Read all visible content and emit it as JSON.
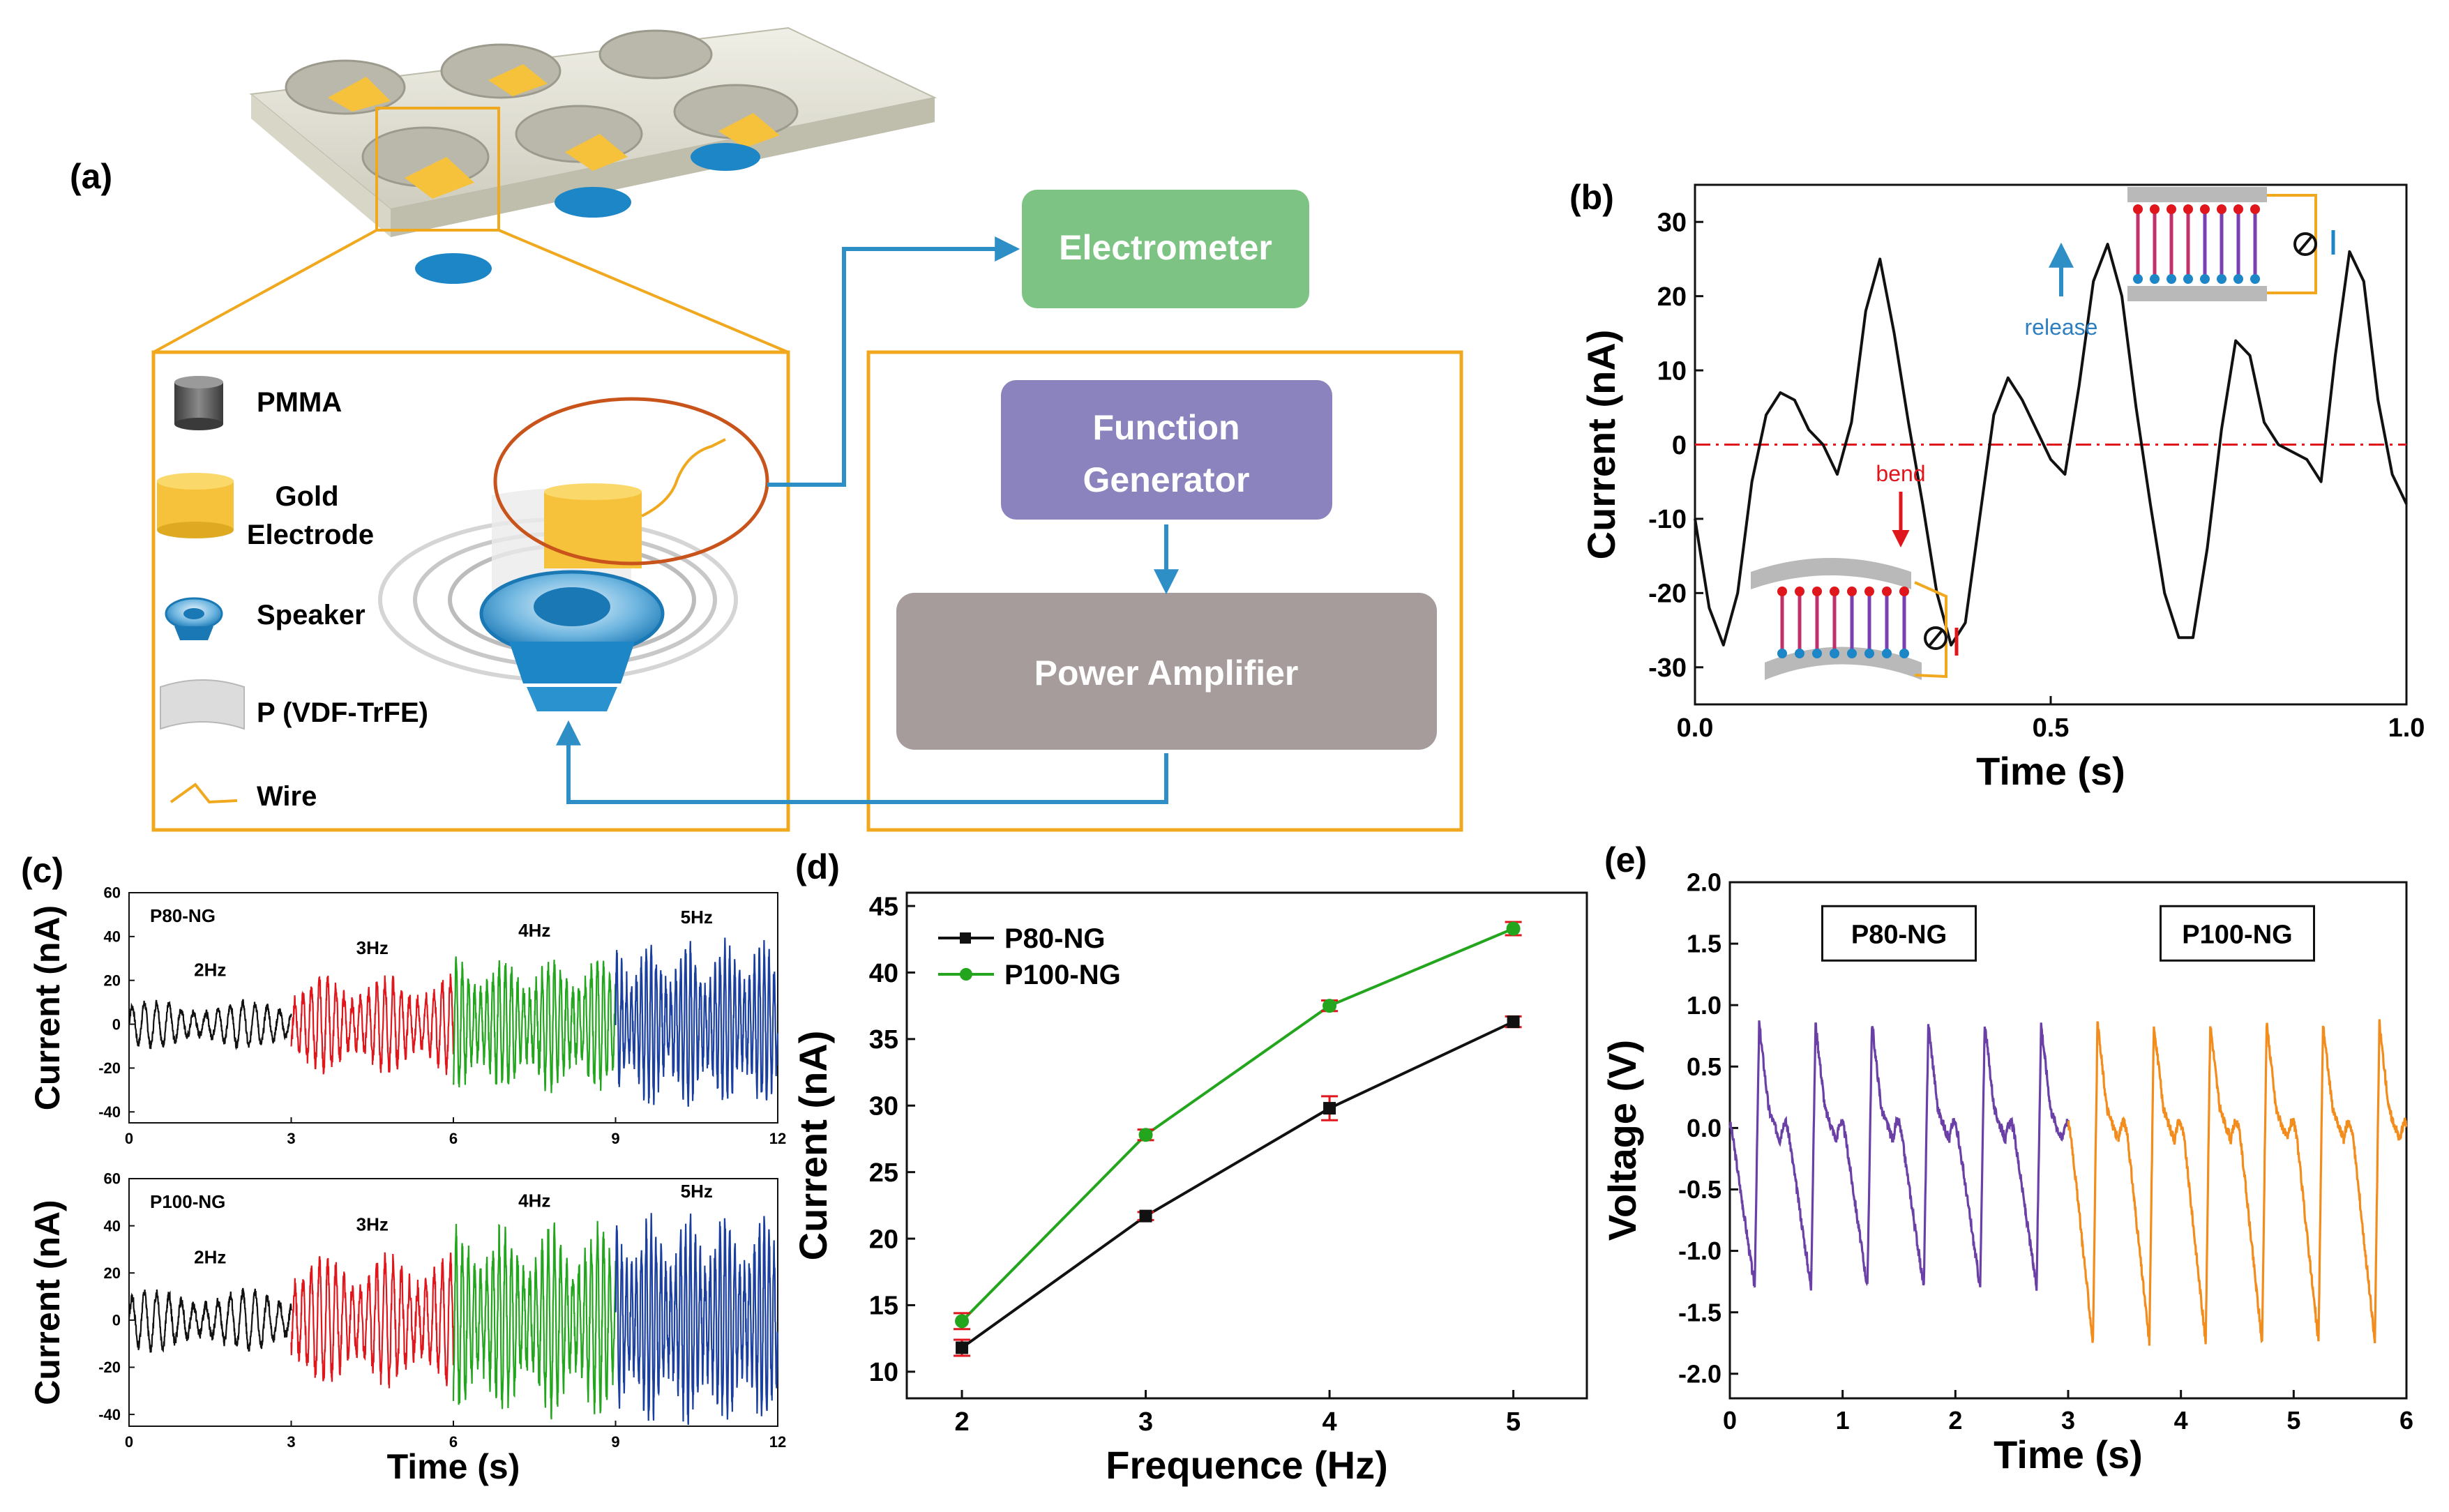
{
  "panel_labels": {
    "a": "(a)",
    "b": "(b)",
    "c": "(c)",
    "d": "(d)",
    "e": "(e)"
  },
  "schematic": {
    "legend": [
      {
        "label": "PMMA",
        "icon": "pmma-cylinder-icon"
      },
      {
        "label": "Gold Electrode",
        "icon": "gold-electrode-icon"
      },
      {
        "label": "Speaker",
        "icon": "speaker-icon"
      },
      {
        "label": "P (VDF-TrFE)",
        "icon": "film-icon"
      },
      {
        "label": "Wire",
        "icon": "wire-icon"
      }
    ],
    "boxes": {
      "electrometer": "Electrometer",
      "function_generator": "Function Generator",
      "power_amplifier": "Power Amplifier"
    },
    "colors": {
      "electrometer": "#7dc383",
      "function_generator": "#8a83bd",
      "power_amplifier": "#a59c9b",
      "frame": "#f0a81e",
      "arrow": "#2e8ec6",
      "gold": "#f6c23c",
      "blue": "#1c86c6"
    }
  },
  "chart_data": [
    {
      "id": "b",
      "type": "line",
      "xlabel": "Time (s)",
      "ylabel": "Current (nA)",
      "xlim": [
        0,
        1.0
      ],
      "ylim": [
        -35,
        35
      ],
      "xticks": [
        0.0,
        0.5,
        1.0
      ],
      "xtick_labels": [
        "0.0",
        "0.5",
        "1.0"
      ],
      "yticks": [
        -30,
        -20,
        -10,
        0,
        10,
        20,
        30
      ],
      "reference_line": 0,
      "annotations": {
        "release": "release",
        "bend": "bend"
      },
      "series": [
        {
          "name": "current",
          "color": "#111111",
          "x": [
            0.0,
            0.02,
            0.04,
            0.06,
            0.08,
            0.1,
            0.12,
            0.14,
            0.16,
            0.18,
            0.2,
            0.22,
            0.24,
            0.26,
            0.28,
            0.3,
            0.32,
            0.34,
            0.36,
            0.38,
            0.4,
            0.42,
            0.44,
            0.46,
            0.48,
            0.5,
            0.52,
            0.54,
            0.56,
            0.58,
            0.6,
            0.62,
            0.64,
            0.66,
            0.68,
            0.7,
            0.72,
            0.74,
            0.76,
            0.78,
            0.8,
            0.82,
            0.84,
            0.86,
            0.88,
            0.9,
            0.92,
            0.94,
            0.96,
            0.98,
            1.0
          ],
          "y": [
            -10,
            -22,
            -27,
            -20,
            -5,
            4,
            7,
            6,
            2,
            0,
            -4,
            3,
            18,
            25,
            15,
            3,
            -8,
            -20,
            -27,
            -24,
            -10,
            4,
            9,
            6,
            2,
            -2,
            -4,
            8,
            22,
            27,
            20,
            5,
            -8,
            -20,
            -26,
            -26,
            -14,
            2,
            14,
            12,
            3,
            0,
            -1,
            -2,
            -5,
            12,
            26,
            22,
            6,
            -4,
            -8
          ]
        }
      ]
    },
    {
      "id": "c_top",
      "type": "line",
      "inner_label": "P80-NG",
      "ylabel": "Current (nA)",
      "xlabel": "",
      "xlim": [
        0,
        12
      ],
      "ylim": [
        -45,
        60
      ],
      "xticks": [
        0,
        3,
        6,
        9,
        12
      ],
      "yticks": [
        -40,
        -20,
        0,
        20,
        40,
        60
      ],
      "segments": [
        {
          "label": "2Hz",
          "freq": 2,
          "amp": 10,
          "x0": 0,
          "x1": 3,
          "color": "#111111"
        },
        {
          "label": "3Hz",
          "freq": 3,
          "amp": 20,
          "x0": 3,
          "x1": 6,
          "color": "#e0161d"
        },
        {
          "label": "4Hz",
          "freq": 4,
          "amp": 28,
          "x0": 6,
          "x1": 9,
          "color": "#23a51e"
        },
        {
          "label": "5Hz",
          "freq": 5,
          "amp": 34,
          "x0": 9,
          "x1": 12,
          "color": "#1a3f9e"
        }
      ]
    },
    {
      "id": "c_bottom",
      "type": "line",
      "inner_label": "P100-NG",
      "ylabel": "Current (nA)",
      "xlabel": "Time (s)",
      "xlim": [
        0,
        12
      ],
      "ylim": [
        -45,
        60
      ],
      "xticks": [
        0,
        3,
        6,
        9,
        12
      ],
      "yticks": [
        -40,
        -20,
        0,
        20,
        40,
        60
      ],
      "segments": [
        {
          "label": "2Hz",
          "freq": 2,
          "amp": 12,
          "x0": 0,
          "x1": 3,
          "color": "#111111"
        },
        {
          "label": "3Hz",
          "freq": 3,
          "amp": 26,
          "x0": 3,
          "x1": 6,
          "color": "#e0161d"
        },
        {
          "label": "4Hz",
          "freq": 4,
          "amp": 36,
          "x0": 6,
          "x1": 9,
          "color": "#23a51e"
        },
        {
          "label": "5Hz",
          "freq": 5,
          "amp": 40,
          "x0": 9,
          "x1": 12,
          "color": "#1a3f9e"
        }
      ]
    },
    {
      "id": "d",
      "type": "line",
      "xlabel": "Frequence (Hz)",
      "ylabel": "Current (nA)",
      "xlim": [
        1.7,
        5.4
      ],
      "ylim": [
        8,
        46
      ],
      "xticks": [
        2,
        3,
        4,
        5
      ],
      "yticks": [
        10,
        15,
        20,
        25,
        30,
        35,
        40,
        45
      ],
      "categories": [
        2,
        3,
        4,
        5
      ],
      "series": [
        {
          "name": "P80-NG",
          "color": "#111111",
          "values": [
            11.8,
            21.7,
            29.8,
            36.3
          ],
          "errors": [
            0.6,
            0.3,
            0.9,
            0.4
          ]
        },
        {
          "name": "P100-NG",
          "color": "#23a51e",
          "values": [
            13.8,
            27.8,
            37.5,
            43.3
          ],
          "errors": [
            0.6,
            0.4,
            0.4,
            0.5
          ]
        }
      ],
      "error_bar_color": "#e0161d"
    },
    {
      "id": "e",
      "type": "line",
      "xlabel": "Time (s)",
      "ylabel": "Voltage (V)",
      "xlim": [
        0,
        6
      ],
      "ylim": [
        -2.2,
        2.0
      ],
      "xticks": [
        0,
        1,
        2,
        3,
        4,
        5,
        6
      ],
      "yticks": [
        -2.0,
        -1.5,
        -1.0,
        -0.5,
        0.0,
        0.5,
        1.0,
        1.5,
        2.0
      ],
      "ytick_labels": [
        "-2.0",
        "-1.5",
        "-1.0",
        "-0.5",
        "0.0",
        "0.5",
        "1.0",
        "1.5",
        "2.0"
      ],
      "segments": [
        {
          "label": "P80-NG",
          "x0": 0,
          "x1": 3,
          "max": 0.85,
          "min": -1.3,
          "period": 0.5,
          "color": "#6a3fa6"
        },
        {
          "label": "P100-NG",
          "x0": 3,
          "x1": 6,
          "max": 0.85,
          "min": -1.75,
          "period": 0.5,
          "color": "#f28c1c"
        }
      ]
    }
  ]
}
